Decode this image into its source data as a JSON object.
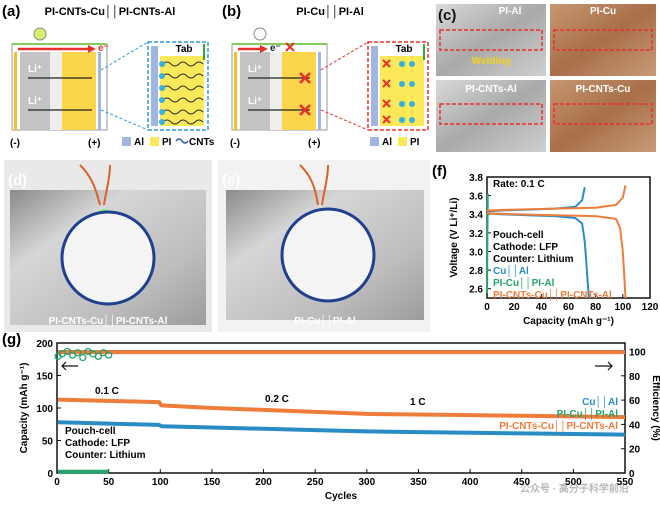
{
  "figure": {
    "a": {
      "label": "(a)",
      "title": "PI-CNTs-Cu││PI-CNTs-Al",
      "electron": "e⁻",
      "li": [
        "Li⁺",
        "Li⁺"
      ],
      "neg": "(-)",
      "pos": "(+)",
      "tab": "Tab",
      "legend": [
        "Al",
        "PI",
        "CNTs"
      ]
    },
    "b": {
      "label": "(b)",
      "title": "PI-Cu││PI-Al",
      "electron": "e⁻",
      "li": [
        "Li⁺",
        "Li⁺"
      ],
      "neg": "(-)",
      "pos": "(+)",
      "tab": "Tab",
      "legend": [
        "Al",
        "PI"
      ]
    },
    "c": {
      "label": "(c)",
      "photos": [
        "PI-Al",
        "PI-Cu",
        "PI-CNTs-Al",
        "PI-CNTs-Cu"
      ],
      "welding": "Welding"
    },
    "d": {
      "label": "(d)",
      "caption": "PI-CNTs-Cu││PI-CNTs-Al"
    },
    "e": {
      "label": "(e)",
      "caption": "PI-Cu││PI-Al"
    },
    "f": {
      "label": "(f)"
    },
    "g": {
      "label": "(g)"
    },
    "watermark": "公众号 · 高分子科学前沿"
  },
  "chart_data": [
    {
      "type": "line",
      "xlabel": "Capacity (mAh g⁻¹)",
      "ylabel": "Voltage (V Li⁺/Li)",
      "xlim": [
        0,
        120
      ],
      "xticks": [
        0,
        20,
        40,
        60,
        80,
        100,
        120
      ],
      "ylim": [
        2.5,
        3.8
      ],
      "yticks": [
        2.6,
        2.8,
        {
          "value": 3,
          "label": "3.0"
        },
        3.2,
        3.4,
        3.6,
        3.8
      ],
      "annotations": [
        "Rate: 0.1 C",
        "Pouch-cell",
        "Cathode: LFP",
        "Counter: Lithium"
      ],
      "series": [
        {
          "name": "Cu││Al",
          "color": "#2a8cc4",
          "x": [
            0,
            10,
            30,
            50,
            65,
            70,
            72,
            null,
            0,
            10,
            30,
            50,
            65,
            70,
            72,
            73,
            74,
            75
          ],
          "values": [
            3.43,
            3.44,
            3.45,
            3.46,
            3.48,
            3.55,
            3.69,
            null,
            3.41,
            3.4,
            3.39,
            3.38,
            3.36,
            3.3,
            3.1,
            2.9,
            2.7,
            2.5
          ]
        },
        {
          "name": "PI-Cu││PI-Al",
          "color": "#27a36e",
          "x": [
            0,
            0.3,
            0.6
          ],
          "values": [
            2.55,
            3.2,
            3.62
          ]
        },
        {
          "name": "PI-CNTs-Cu││PI-CNTs-Al",
          "color": "#ee7d3b",
          "x": [
            0,
            20,
            50,
            80,
            95,
            100,
            102,
            null,
            0,
            20,
            50,
            80,
            95,
            98,
            100,
            101,
            102
          ],
          "values": [
            3.44,
            3.45,
            3.46,
            3.47,
            3.5,
            3.58,
            3.71,
            null,
            3.41,
            3.4,
            3.39,
            3.38,
            3.35,
            3.25,
            3,
            2.75,
            2.5
          ]
        }
      ]
    },
    {
      "type": "line",
      "xlabel": "Cycles",
      "ylabel": "Capacity (mAh g⁻¹)",
      "y2label": "Efficiency (%)",
      "xlim": [
        0,
        550
      ],
      "xticks": [
        0,
        50,
        100,
        150,
        200,
        250,
        300,
        350,
        400,
        450,
        500,
        550
      ],
      "ylim": [
        0,
        200
      ],
      "yticks": [
        0,
        50,
        100,
        150,
        200
      ],
      "y2lim": [
        0,
        107
      ],
      "y2ticks": [
        0,
        20,
        40,
        60,
        80,
        100
      ],
      "annotations": [
        "0.1 C",
        "0.2 C",
        "1 C",
        "Pouch-cell",
        "Cathode: LFP",
        "Counter: Lithium"
      ],
      "series": [
        {
          "name": "Cu││Al",
          "color": "#2a8cc4",
          "x": [
            1,
            25,
            50,
            75,
            99,
            101,
            150,
            200,
            250,
            300,
            350,
            400,
            450,
            500,
            550
          ],
          "values": [
            78,
            77,
            76,
            75,
            74,
            72,
            70,
            68,
            66,
            64,
            63,
            62,
            61,
            60,
            59
          ]
        },
        {
          "name": "PI-Cu││PI-Al",
          "color": "#27a36e",
          "x": [
            1,
            10,
            20,
            30,
            40,
            50
          ],
          "values": [
            2,
            2,
            2,
            2,
            2,
            2
          ]
        },
        {
          "name": "PI-CNTs-Cu││PI-CNTs-Al",
          "color": "#ee7d3b",
          "x": [
            1,
            25,
            50,
            75,
            99,
            101,
            150,
            200,
            250,
            300,
            350,
            400,
            450,
            500,
            550
          ],
          "values": [
            113,
            112,
            111,
            110,
            109,
            104,
            100,
            97,
            94,
            91,
            90,
            89,
            88,
            87,
            86
          ]
        },
        {
          "color": "#2a8cc4",
          "axis": "y2",
          "x": [
            1,
            50,
            100,
            150,
            200,
            250,
            300,
            350,
            400,
            450,
            500,
            550
          ],
          "values": [
            99.6,
            99.6,
            99.6,
            99.6,
            99.6,
            99.6,
            99.6,
            99.6,
            99.6,
            99.6,
            99.6,
            99.6
          ]
        },
        {
          "color": "#ee7d3b",
          "axis": "y2",
          "x": [
            1,
            50,
            100,
            150,
            200,
            250,
            300,
            350,
            400,
            450,
            500,
            550
          ],
          "values": [
            99.5,
            99.5,
            99.5,
            99.5,
            99.5,
            99.5,
            99.5,
            99.5,
            99.5,
            99.5,
            99.5,
            99.5
          ]
        },
        {
          "color": "#27a36e",
          "axis": "y2",
          "marker": "circle-open",
          "x": [
            1,
            5,
            10,
            15,
            20,
            25,
            30,
            35,
            40,
            45,
            50
          ],
          "values": [
            96,
            98,
            100,
            97,
            99,
            95,
            100,
            98,
            96,
            99,
            97
          ]
        }
      ]
    }
  ]
}
